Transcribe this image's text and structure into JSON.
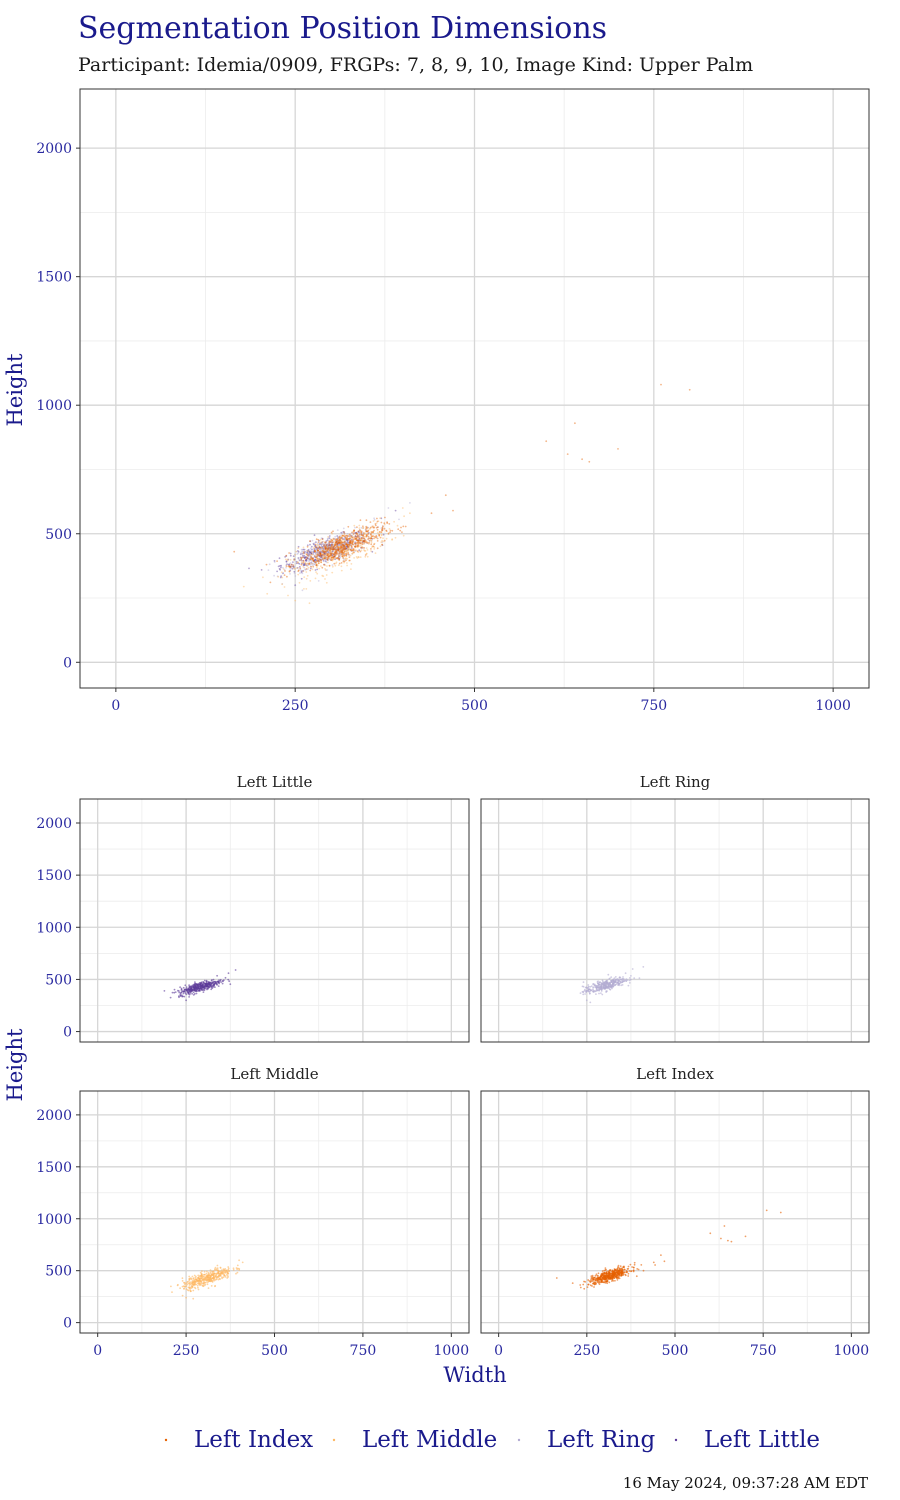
{
  "title": "Segmentation Position Dimensions",
  "subtitle": "Participant: Idemia/0909, FRGPs: 7, 8, 9, 10, Image Kind: Upper Palm",
  "timestamp": "16 May 2024, 09:37:28 AM EDT",
  "xlabel": "Width",
  "ylabel": "Height",
  "xticks": [
    "0",
    "250",
    "500",
    "750",
    "1000"
  ],
  "yticks": [
    "0",
    "500",
    "1000",
    "1500",
    "2000"
  ],
  "legend": [
    {
      "name": "Left Index",
      "color": "#e66101"
    },
    {
      "name": "Left Middle",
      "color": "#fdb863"
    },
    {
      "name": "Left Ring",
      "color": "#b2abd2"
    },
    {
      "name": "Left Little",
      "color": "#5e3c99"
    }
  ],
  "panel_titles": [
    "Left Little",
    "Left Ring",
    "Left Middle",
    "Left Index"
  ],
  "chart_data": {
    "type": "scatter",
    "xlim": [
      -50,
      1050
    ],
    "ylim": [
      -100,
      2230
    ],
    "grid": true,
    "legend_position": "bottom",
    "series": [
      {
        "name": "Left Index",
        "color": "#e66101",
        "cluster": {
          "center": [
            315,
            450
          ],
          "spread": [
            30,
            40
          ],
          "count": 500
        },
        "outliers": [
          [
            165,
            430
          ],
          [
            210,
            380
          ],
          [
            440,
            580
          ],
          [
            460,
            650
          ],
          [
            470,
            590
          ],
          [
            600,
            860
          ],
          [
            630,
            810
          ],
          [
            640,
            930
          ],
          [
            650,
            790
          ],
          [
            660,
            780
          ],
          [
            700,
            830
          ],
          [
            760,
            1080
          ],
          [
            800,
            1060
          ]
        ]
      },
      {
        "name": "Left Middle",
        "color": "#fdb863",
        "cluster": {
          "center": [
            310,
            430
          ],
          "spread": [
            35,
            50
          ],
          "count": 400
        },
        "outliers": [
          [
            240,
            260
          ],
          [
            250,
            240
          ],
          [
            270,
            230
          ],
          [
            400,
            600
          ],
          [
            410,
            580
          ]
        ]
      },
      {
        "name": "Left Ring",
        "color": "#b2abd2",
        "cluster": {
          "center": [
            300,
            440
          ],
          "spread": [
            30,
            40
          ],
          "count": 350
        },
        "outliers": [
          [
            250,
            300
          ],
          [
            260,
            280
          ],
          [
            360,
            560
          ],
          [
            380,
            600
          ],
          [
            410,
            620
          ]
        ]
      },
      {
        "name": "Left Little",
        "color": "#5e3c99",
        "cluster": {
          "center": [
            290,
            430
          ],
          "spread": [
            30,
            35
          ],
          "count": 400
        },
        "outliers": [
          [
            230,
            330
          ],
          [
            250,
            300
          ],
          [
            370,
            560
          ],
          [
            390,
            590
          ]
        ]
      }
    ]
  }
}
